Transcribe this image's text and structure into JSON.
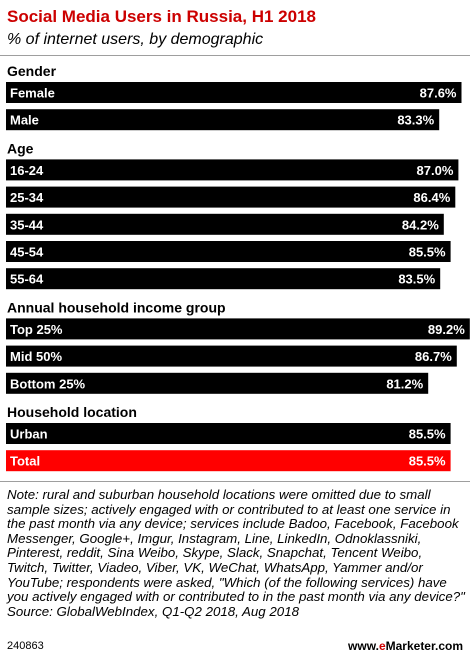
{
  "header": {
    "title": "Social Media Users in Russia, H1 2018",
    "subtitle": "% of internet users, by demographic"
  },
  "chart_data": {
    "type": "bar",
    "orientation": "horizontal",
    "title": "Social Media Users in Russia, H1 2018",
    "subtitle": "% of internet users, by demographic",
    "unit": "%",
    "xlim": [
      0,
      100
    ],
    "grid": false,
    "legend": "none",
    "bar_color": "#000000",
    "highlight_color": "#ff0000",
    "groups": [
      {
        "label": "Gender",
        "bars": [
          {
            "category": "Female",
            "value": 87.6,
            "value_label": "87.6%"
          },
          {
            "category": "Male",
            "value": 83.3,
            "value_label": "83.3%"
          }
        ]
      },
      {
        "label": "Age",
        "bars": [
          {
            "category": "16-24",
            "value": 87.0,
            "value_label": "87.0%"
          },
          {
            "category": "25-34",
            "value": 86.4,
            "value_label": "86.4%"
          },
          {
            "category": "35-44",
            "value": 84.2,
            "value_label": "84.2%"
          },
          {
            "category": "45-54",
            "value": 85.5,
            "value_label": "85.5%"
          },
          {
            "category": "55-64",
            "value": 83.5,
            "value_label": "83.5%"
          }
        ]
      },
      {
        "label": "Annual household income group",
        "bars": [
          {
            "category": "Top 25%",
            "value": 89.2,
            "value_label": "89.2%"
          },
          {
            "category": "Mid 50%",
            "value": 86.7,
            "value_label": "86.7%"
          },
          {
            "category": "Bottom 25%",
            "value": 81.2,
            "value_label": "81.2%"
          }
        ]
      },
      {
        "label": "Household location",
        "bars": [
          {
            "category": "Urban",
            "value": 85.5,
            "value_label": "85.5%"
          },
          {
            "category": "Total",
            "value": 85.5,
            "value_label": "85.5%",
            "highlight": true
          }
        ]
      }
    ]
  },
  "footer": {
    "note": "Note: rural and suburban household locations were omitted due to small sample sizes; actively engaged with or contributed to at least one service in the past month via any device; services include Badoo, Facebook, Facebook Messenger, Google+, Imgur, Instagram, Line, LinkedIn, Odnoklassniki, Pinterest, reddit, Sina Weibo, Skype, Slack, Snapchat, Tencent Weibo, Twitch, Twitter, Viadeo, Viber, VK, WeChat, WhatsApp, Yammer and/or YouTube; respondents were asked, \"Which (of the following services) have you actively engaged with or contributed to in the past month via any device?\"",
    "source": "Source: GlobalWebIndex, Q1-Q2 2018, Aug 2018",
    "chart_id": "240863",
    "brand_prefix": "www.",
    "brand_accent": "e",
    "brand_suffix": "Marketer.com"
  }
}
